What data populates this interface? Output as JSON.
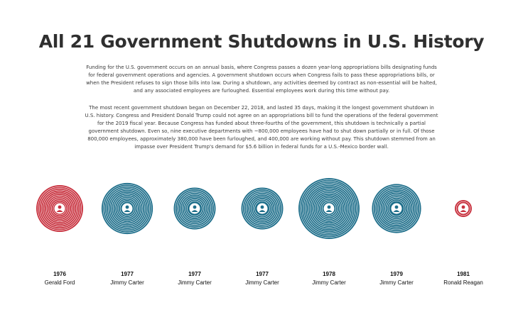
{
  "page": {
    "title": "All 21 Government Shutdowns in U.S. History",
    "intro": "Funding for the U.S. government occurs on an annual basis, where Congress passes a dozen year-long appropriations bills designating funds for federal government operations and agencies. A government shutdown occurs when Congress fails to pass these appropriations bills, or when the President refuses to sign those bills into law. During a shutdown, any activities deemed by contract as non-essential will be halted, and any associated employees are furloughed. Essential employees work during this time without pay.",
    "recent": "The most recent government shutdown began on December 22, 2018, and lasted 35 days, making it the longest government shutdown in U.S. history. Congress and President Donald Trump could not agree on an appropriations bill to fund the operations of the federal government for the 2019 fiscal year. Because Congress has funded about three-fourths of the government, this shutdown is technically a partial government shutdown. Even so, nine executive departments with ~800,000 employees have had to shut down partially or in full. Of those 800,000 employees, approximately 380,000 have been furloughed, and 400,000 are working without pay. This shutdown stemmed from an impasse over President Trump's demand for $5.6 billion in federal funds for a U.S.-Mexico border wall."
  },
  "colors": {
    "republican": "#c8323f",
    "democrat": "#1f6f8b",
    "title": "#2f2f2f"
  },
  "chart_data": {
    "type": "bubble",
    "categories": [
      "1976",
      "1977",
      "1977",
      "1977",
      "1978",
      "1979",
      "1981"
    ],
    "presidents": [
      "Gerald Ford",
      "Jimmy Carter",
      "Jimmy Carter",
      "Jimmy Carter",
      "Jimmy Carter",
      "Jimmy Carter",
      "Ronald Reagan"
    ],
    "party": [
      "republican",
      "democrat",
      "democrat",
      "democrat",
      "democrat",
      "democrat",
      "republican"
    ],
    "values": [
      10,
      12,
      8,
      8,
      17,
      11,
      1
    ],
    "size_encoding": "circle area proportional to shutdown length (days)",
    "icon": "president-portrait-icon"
  }
}
